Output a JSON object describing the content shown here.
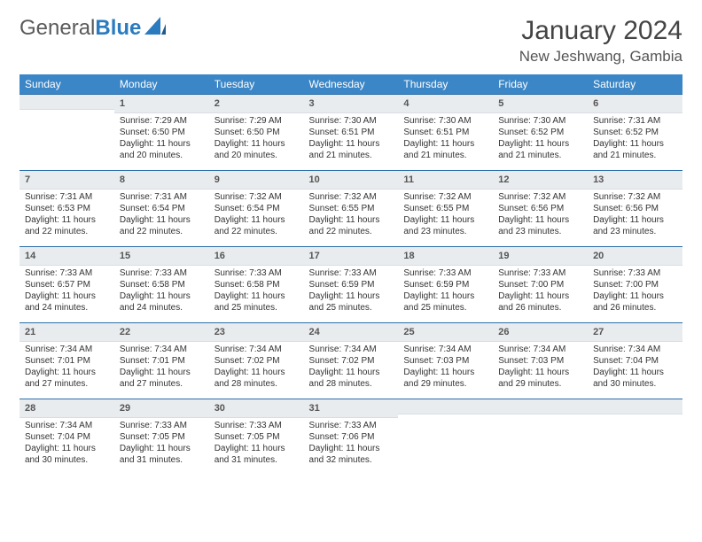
{
  "brand": {
    "part1": "General",
    "part2": "Blue"
  },
  "title": "January 2024",
  "location": "New Jeshwang, Gambia",
  "colors": {
    "header_bg": "#3b86c6",
    "daynum_bg": "#e9ecef",
    "row_border": "#2d6ea8"
  },
  "weekdays": [
    "Sunday",
    "Monday",
    "Tuesday",
    "Wednesday",
    "Thursday",
    "Friday",
    "Saturday"
  ],
  "weeks": [
    [
      {
        "n": "",
        "sr": "",
        "ss": "",
        "dl": ""
      },
      {
        "n": "1",
        "sr": "Sunrise: 7:29 AM",
        "ss": "Sunset: 6:50 PM",
        "dl": "Daylight: 11 hours and 20 minutes."
      },
      {
        "n": "2",
        "sr": "Sunrise: 7:29 AM",
        "ss": "Sunset: 6:50 PM",
        "dl": "Daylight: 11 hours and 20 minutes."
      },
      {
        "n": "3",
        "sr": "Sunrise: 7:30 AM",
        "ss": "Sunset: 6:51 PM",
        "dl": "Daylight: 11 hours and 21 minutes."
      },
      {
        "n": "4",
        "sr": "Sunrise: 7:30 AM",
        "ss": "Sunset: 6:51 PM",
        "dl": "Daylight: 11 hours and 21 minutes."
      },
      {
        "n": "5",
        "sr": "Sunrise: 7:30 AM",
        "ss": "Sunset: 6:52 PM",
        "dl": "Daylight: 11 hours and 21 minutes."
      },
      {
        "n": "6",
        "sr": "Sunrise: 7:31 AM",
        "ss": "Sunset: 6:52 PM",
        "dl": "Daylight: 11 hours and 21 minutes."
      }
    ],
    [
      {
        "n": "7",
        "sr": "Sunrise: 7:31 AM",
        "ss": "Sunset: 6:53 PM",
        "dl": "Daylight: 11 hours and 22 minutes."
      },
      {
        "n": "8",
        "sr": "Sunrise: 7:31 AM",
        "ss": "Sunset: 6:54 PM",
        "dl": "Daylight: 11 hours and 22 minutes."
      },
      {
        "n": "9",
        "sr": "Sunrise: 7:32 AM",
        "ss": "Sunset: 6:54 PM",
        "dl": "Daylight: 11 hours and 22 minutes."
      },
      {
        "n": "10",
        "sr": "Sunrise: 7:32 AM",
        "ss": "Sunset: 6:55 PM",
        "dl": "Daylight: 11 hours and 22 minutes."
      },
      {
        "n": "11",
        "sr": "Sunrise: 7:32 AM",
        "ss": "Sunset: 6:55 PM",
        "dl": "Daylight: 11 hours and 23 minutes."
      },
      {
        "n": "12",
        "sr": "Sunrise: 7:32 AM",
        "ss": "Sunset: 6:56 PM",
        "dl": "Daylight: 11 hours and 23 minutes."
      },
      {
        "n": "13",
        "sr": "Sunrise: 7:32 AM",
        "ss": "Sunset: 6:56 PM",
        "dl": "Daylight: 11 hours and 23 minutes."
      }
    ],
    [
      {
        "n": "14",
        "sr": "Sunrise: 7:33 AM",
        "ss": "Sunset: 6:57 PM",
        "dl": "Daylight: 11 hours and 24 minutes."
      },
      {
        "n": "15",
        "sr": "Sunrise: 7:33 AM",
        "ss": "Sunset: 6:58 PM",
        "dl": "Daylight: 11 hours and 24 minutes."
      },
      {
        "n": "16",
        "sr": "Sunrise: 7:33 AM",
        "ss": "Sunset: 6:58 PM",
        "dl": "Daylight: 11 hours and 25 minutes."
      },
      {
        "n": "17",
        "sr": "Sunrise: 7:33 AM",
        "ss": "Sunset: 6:59 PM",
        "dl": "Daylight: 11 hours and 25 minutes."
      },
      {
        "n": "18",
        "sr": "Sunrise: 7:33 AM",
        "ss": "Sunset: 6:59 PM",
        "dl": "Daylight: 11 hours and 25 minutes."
      },
      {
        "n": "19",
        "sr": "Sunrise: 7:33 AM",
        "ss": "Sunset: 7:00 PM",
        "dl": "Daylight: 11 hours and 26 minutes."
      },
      {
        "n": "20",
        "sr": "Sunrise: 7:33 AM",
        "ss": "Sunset: 7:00 PM",
        "dl": "Daylight: 11 hours and 26 minutes."
      }
    ],
    [
      {
        "n": "21",
        "sr": "Sunrise: 7:34 AM",
        "ss": "Sunset: 7:01 PM",
        "dl": "Daylight: 11 hours and 27 minutes."
      },
      {
        "n": "22",
        "sr": "Sunrise: 7:34 AM",
        "ss": "Sunset: 7:01 PM",
        "dl": "Daylight: 11 hours and 27 minutes."
      },
      {
        "n": "23",
        "sr": "Sunrise: 7:34 AM",
        "ss": "Sunset: 7:02 PM",
        "dl": "Daylight: 11 hours and 28 minutes."
      },
      {
        "n": "24",
        "sr": "Sunrise: 7:34 AM",
        "ss": "Sunset: 7:02 PM",
        "dl": "Daylight: 11 hours and 28 minutes."
      },
      {
        "n": "25",
        "sr": "Sunrise: 7:34 AM",
        "ss": "Sunset: 7:03 PM",
        "dl": "Daylight: 11 hours and 29 minutes."
      },
      {
        "n": "26",
        "sr": "Sunrise: 7:34 AM",
        "ss": "Sunset: 7:03 PM",
        "dl": "Daylight: 11 hours and 29 minutes."
      },
      {
        "n": "27",
        "sr": "Sunrise: 7:34 AM",
        "ss": "Sunset: 7:04 PM",
        "dl": "Daylight: 11 hours and 30 minutes."
      }
    ],
    [
      {
        "n": "28",
        "sr": "Sunrise: 7:34 AM",
        "ss": "Sunset: 7:04 PM",
        "dl": "Daylight: 11 hours and 30 minutes."
      },
      {
        "n": "29",
        "sr": "Sunrise: 7:33 AM",
        "ss": "Sunset: 7:05 PM",
        "dl": "Daylight: 11 hours and 31 minutes."
      },
      {
        "n": "30",
        "sr": "Sunrise: 7:33 AM",
        "ss": "Sunset: 7:05 PM",
        "dl": "Daylight: 11 hours and 31 minutes."
      },
      {
        "n": "31",
        "sr": "Sunrise: 7:33 AM",
        "ss": "Sunset: 7:06 PM",
        "dl": "Daylight: 11 hours and 32 minutes."
      },
      {
        "n": "",
        "sr": "",
        "ss": "",
        "dl": ""
      },
      {
        "n": "",
        "sr": "",
        "ss": "",
        "dl": ""
      },
      {
        "n": "",
        "sr": "",
        "ss": "",
        "dl": ""
      }
    ]
  ]
}
